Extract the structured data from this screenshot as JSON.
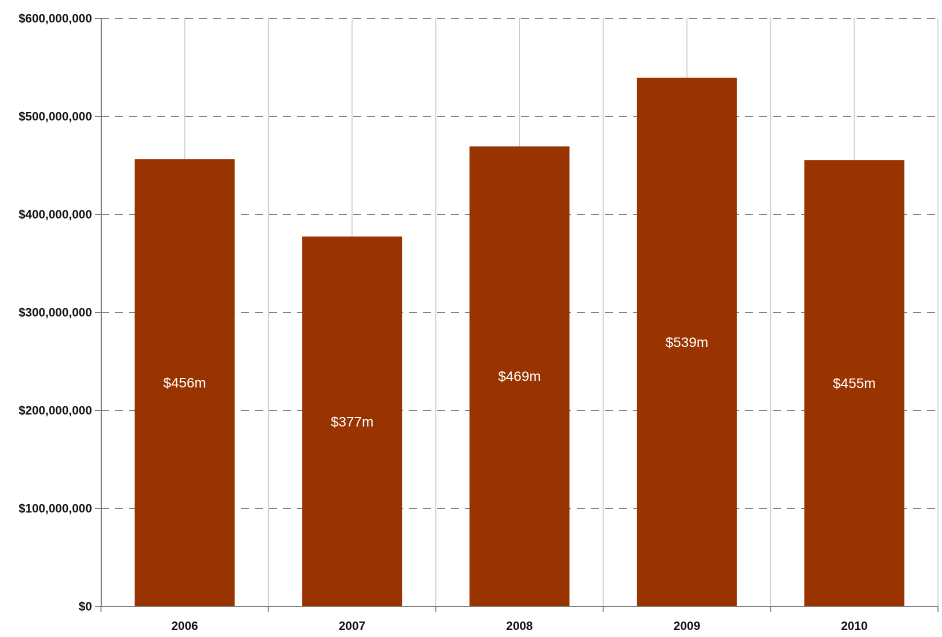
{
  "chart_data": {
    "type": "bar",
    "categories": [
      "2006",
      "2007",
      "2008",
      "2009",
      "2010"
    ],
    "values": [
      456000000,
      377000000,
      469000000,
      539000000,
      455000000
    ],
    "data_labels": [
      "$456m",
      "$377m",
      "$469m",
      "$539m",
      "$455m"
    ],
    "y_ticks": [
      0,
      100000000,
      200000000,
      300000000,
      400000000,
      500000000,
      600000000
    ],
    "y_tick_labels": [
      "$0",
      "$100,000,000",
      "$200,000,000",
      "$300,000,000",
      "$400,000,000",
      "$500,000,000",
      "$600,000,000"
    ],
    "ylim": [
      0,
      600000000
    ],
    "title": "",
    "xlabel": "",
    "ylabel": "",
    "grid": "horizontal dashed",
    "legend": "none",
    "colors": {
      "bar": "#993300",
      "grid": "#808080",
      "axis": "#808080",
      "vertical_grid": "#cccccc"
    }
  }
}
